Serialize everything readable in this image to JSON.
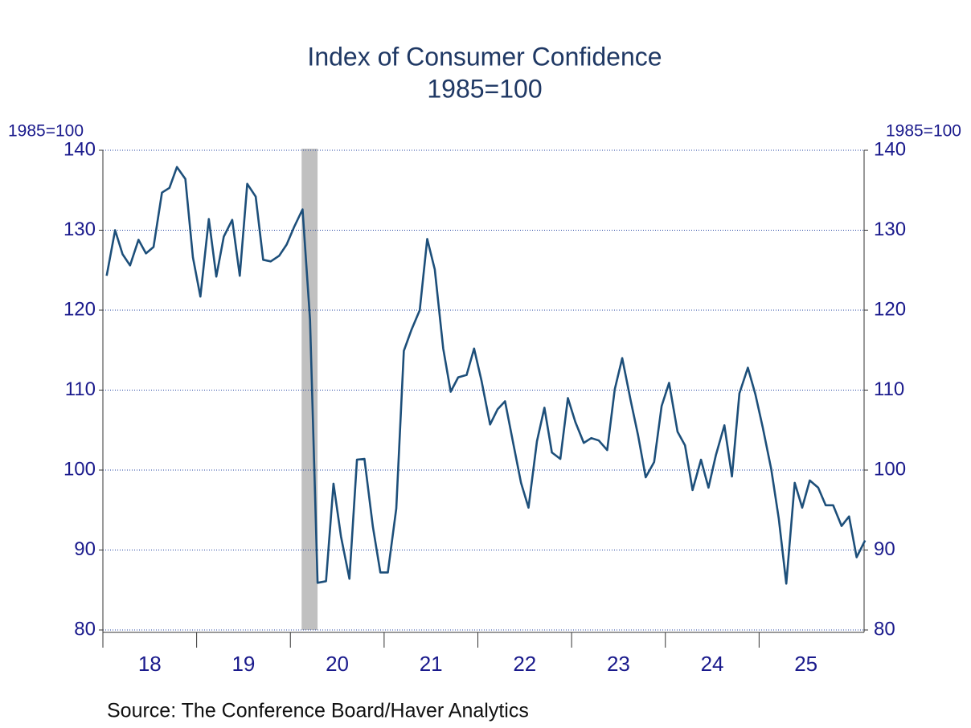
{
  "chart_data": {
    "type": "line",
    "title": "Index of Consumer Confidence",
    "subtitle": "1985=100",
    "y_label": "1985=100",
    "y2_label": "1985=100",
    "source": "Source:  The Conference Board/Haver Analytics",
    "ylim": [
      80,
      140
    ],
    "yticks": [
      80,
      90,
      100,
      110,
      120,
      130,
      140
    ],
    "grid": true,
    "xlim": [
      2018,
      2026.12
    ],
    "xticks": [
      {
        "value": 2018.5,
        "label": "18"
      },
      {
        "value": 2019.5,
        "label": "19"
      },
      {
        "value": 2020.5,
        "label": "20"
      },
      {
        "value": 2021.5,
        "label": "21"
      },
      {
        "value": 2022.5,
        "label": "22"
      },
      {
        "value": 2023.5,
        "label": "23"
      },
      {
        "value": 2024.5,
        "label": "24"
      },
      {
        "value": 2025.5,
        "label": "25"
      }
    ],
    "recession": [
      2020.12,
      2020.29
    ],
    "recession_color": "#c0c0c0",
    "x": [
      2018.04,
      2018.13,
      2018.21,
      2018.29,
      2018.38,
      2018.46,
      2018.54,
      2018.63,
      2018.71,
      2018.79,
      2018.88,
      2018.96,
      2019.04,
      2019.13,
      2019.21,
      2019.29,
      2019.38,
      2019.46,
      2019.54,
      2019.63,
      2019.71,
      2019.79,
      2019.88,
      2019.96,
      2020.04,
      2020.13,
      2020.21,
      2020.29,
      2020.38,
      2020.46,
      2020.54,
      2020.63,
      2020.71,
      2020.79,
      2020.88,
      2020.96,
      2021.04,
      2021.13,
      2021.21,
      2021.29,
      2021.38,
      2021.46,
      2021.54,
      2021.63,
      2021.71,
      2021.79,
      2021.88,
      2021.96,
      2022.04,
      2022.13,
      2022.21,
      2022.29,
      2022.38,
      2022.46,
      2022.54,
      2022.63,
      2022.71,
      2022.79,
      2022.88,
      2022.96,
      2023.04,
      2023.13,
      2023.21,
      2023.29,
      2023.38,
      2023.46,
      2023.54,
      2023.63,
      2023.71,
      2023.79,
      2023.88,
      2023.96,
      2024.04,
      2024.13,
      2024.21,
      2024.29,
      2024.38,
      2024.46,
      2024.54,
      2024.63,
      2024.71,
      2024.79,
      2024.88,
      2024.96,
      2025.04,
      2025.13,
      2025.21,
      2025.29,
      2025.38,
      2025.46,
      2025.54,
      2025.63,
      2025.71,
      2025.79,
      2025.88,
      2025.96,
      2026.04,
      2026.13
    ],
    "series": [
      {
        "name": "Consumer Confidence",
        "color": "#1d4f7a",
        "values": [
          124.3,
          130.0,
          127.0,
          125.6,
          128.8,
          127.1,
          127.9,
          134.7,
          135.3,
          137.9,
          136.4,
          126.6,
          121.7,
          131.4,
          124.2,
          129.2,
          131.3,
          124.3,
          135.8,
          134.2,
          126.3,
          126.1,
          126.8,
          128.2,
          130.4,
          132.6,
          118.8,
          85.9,
          86.1,
          98.3,
          91.7,
          86.4,
          101.3,
          101.4,
          92.9,
          87.2,
          87.2,
          95.2,
          114.9,
          117.5,
          120.0,
          128.9,
          125.1,
          115.2,
          109.8,
          111.6,
          111.9,
          115.2,
          111.1,
          105.7,
          107.6,
          108.6,
          103.2,
          98.4,
          95.3,
          103.6,
          107.8,
          102.2,
          101.4,
          109.0,
          106.0,
          103.4,
          104.0,
          103.7,
          102.5,
          110.1,
          114.0,
          108.7,
          104.3,
          99.1,
          101.0,
          108.0,
          110.9,
          104.8,
          103.1,
          97.5,
          101.3,
          97.8,
          101.9,
          105.6,
          99.2,
          109.6,
          112.8,
          109.5,
          105.3,
          100.1,
          93.9,
          85.8,
          98.4,
          95.3,
          98.7,
          97.8,
          95.6,
          95.6,
          93.0,
          94.2,
          89.1,
          91.2
        ]
      }
    ]
  }
}
